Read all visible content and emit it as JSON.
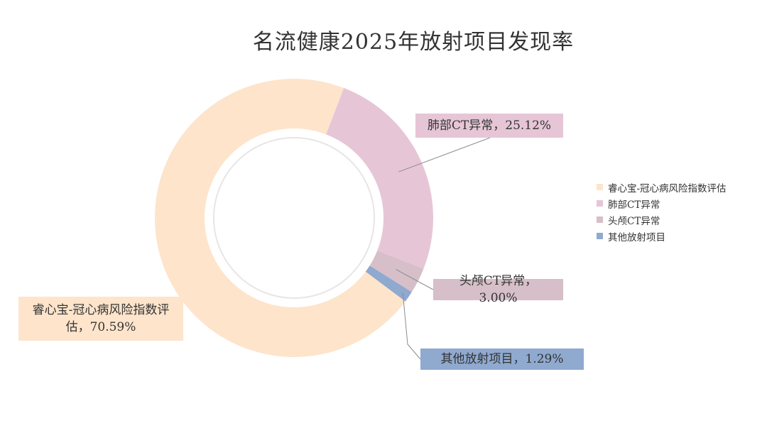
{
  "chart_data": {
    "type": "pie",
    "title": "名流健康2025年放射项目发现率",
    "categories": [
      "睿心宝-冠心病风险指数评估",
      "肺部CT异常",
      "头颅CT异常",
      "其他放射项目"
    ],
    "values": [
      70.59,
      25.12,
      3.0,
      1.29
    ],
    "data_labels": [
      "睿心宝-冠心病风险指数评估，70.59%",
      "肺部CT异常，25.12%",
      "头颅CT异常，3.00%",
      "其他放射项目，1.29%"
    ],
    "colors": [
      "#fde4cb",
      "#e6c6d6",
      "#d6bfc8",
      "#8fa9cf"
    ],
    "label_backgrounds": [
      "#fde4cb",
      "#e6c6d6",
      "#d6bfc8",
      "#8fa9cf"
    ],
    "donut": true,
    "legend_position": "right"
  }
}
